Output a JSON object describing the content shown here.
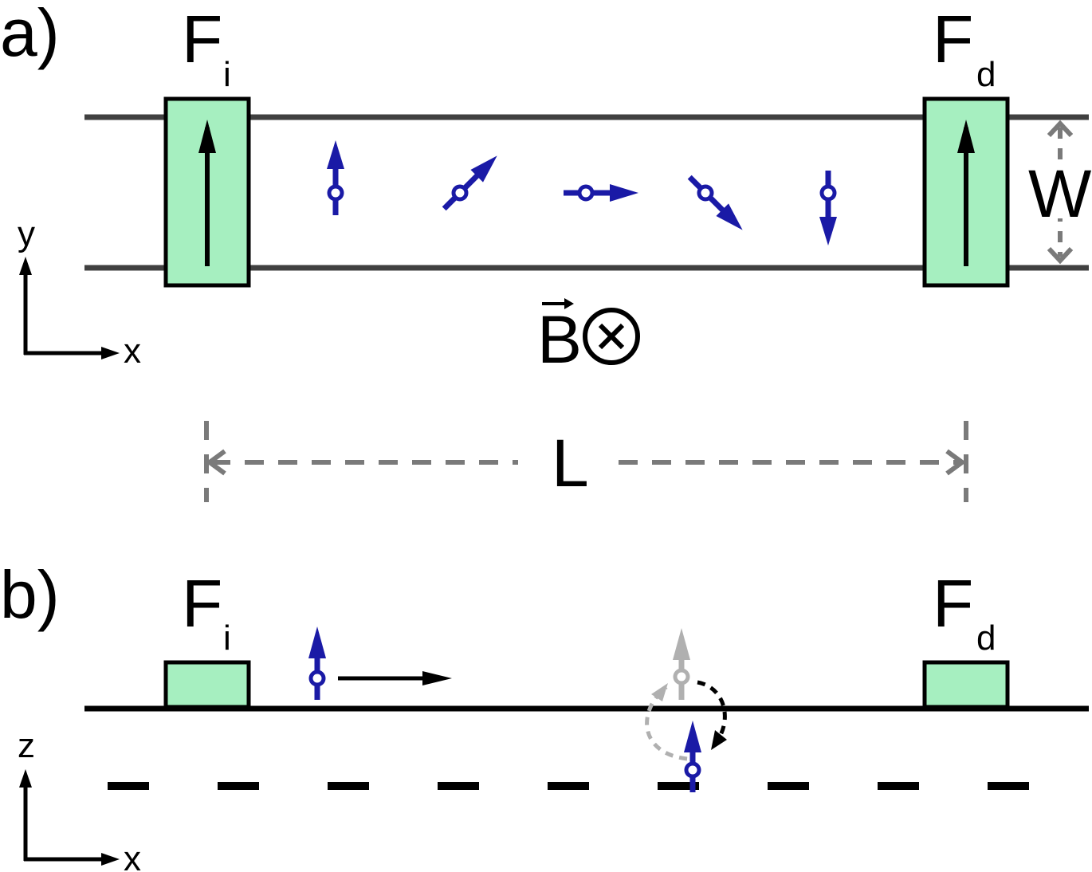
{
  "panel_a": {
    "label": "a)",
    "injector": {
      "name": "F",
      "subscript": "i"
    },
    "detector": {
      "name": "F",
      "subscript": "d"
    },
    "width_label": "W",
    "length_label": "L",
    "field_label": "B",
    "field_symbol": "⊗",
    "axes": {
      "vertical": "y",
      "horizontal": "x"
    },
    "spin_precession_angles_deg": [
      90,
      45,
      0,
      -45,
      -90
    ]
  },
  "panel_b": {
    "label": "b)",
    "injector": {
      "name": "F",
      "subscript": "i"
    },
    "detector": {
      "name": "F",
      "subscript": "d"
    },
    "axes": {
      "vertical": "z",
      "horizontal": "x"
    }
  },
  "colors": {
    "spin": "#1a1aa6",
    "contact_fill": "#a6efc0",
    "channel_line": "#404040",
    "dimension": "#7a7a7a",
    "ghost_spin": "#b0b0b0"
  }
}
